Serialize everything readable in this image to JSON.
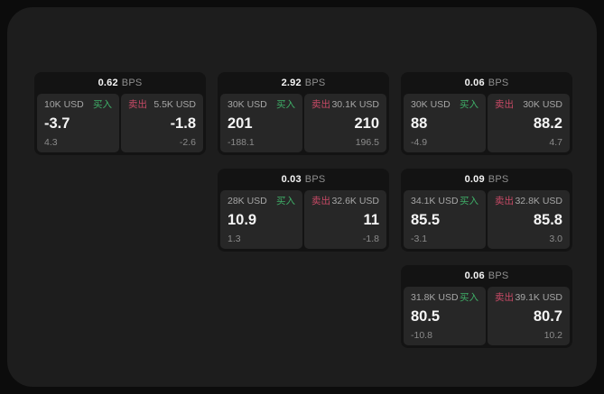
{
  "labels": {
    "buy": "买入",
    "sell": "卖出",
    "bps": "BPS"
  },
  "colors": {
    "buy_green": "#3faf68",
    "sell_red": "#c84a66",
    "panel_bg": "#1d1d1d",
    "card_bg": "#131313",
    "pane_bg": "#272727"
  },
  "cards": [
    {
      "bps": "0.62",
      "buy": {
        "notional": "10K USD",
        "value": "-3.7",
        "sub": "4.3"
      },
      "sell": {
        "notional": "5.5K USD",
        "value": "-1.8",
        "sub": "-2.6"
      }
    },
    {
      "bps": "2.92",
      "buy": {
        "notional": "30K USD",
        "value": "201",
        "sub": "-188.1"
      },
      "sell": {
        "notional": "30.1K USD",
        "value": "210",
        "sub": "196.5"
      }
    },
    {
      "bps": "0.06",
      "buy": {
        "notional": "30K USD",
        "value": "88",
        "sub": "-4.9"
      },
      "sell": {
        "notional": "30K USD",
        "value": "88.2",
        "sub": "4.7"
      }
    },
    {
      "bps": "0.03",
      "buy": {
        "notional": "28K USD",
        "value": "10.9",
        "sub": "1.3"
      },
      "sell": {
        "notional": "32.6K USD",
        "value": "11",
        "sub": "-1.8"
      }
    },
    {
      "bps": "0.09",
      "buy": {
        "notional": "34.1K USD",
        "value": "85.5",
        "sub": "-3.1"
      },
      "sell": {
        "notional": "32.8K USD",
        "value": "85.8",
        "sub": "3.0"
      }
    },
    {
      "bps": "0.06",
      "buy": {
        "notional": "31.8K USD",
        "value": "80.5",
        "sub": "-10.8"
      },
      "sell": {
        "notional": "39.1K USD",
        "value": "80.7",
        "sub": "10.2"
      }
    }
  ]
}
